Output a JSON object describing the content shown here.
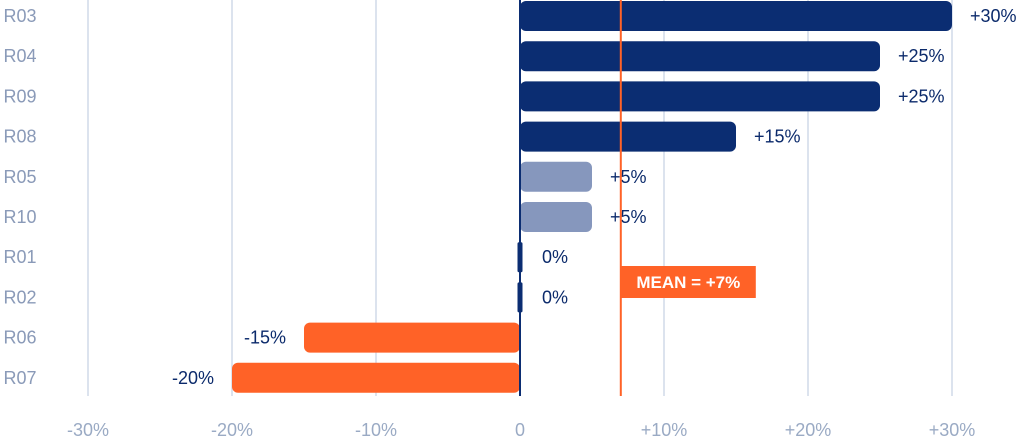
{
  "chart_data": {
    "type": "bar",
    "orientation": "horizontal",
    "categories": [
      "R03",
      "R04",
      "R09",
      "R08",
      "R05",
      "R10",
      "R01",
      "R02",
      "R06",
      "R07"
    ],
    "values": [
      30,
      25,
      25,
      15,
      5,
      5,
      0,
      0,
      -15,
      -20
    ],
    "value_labels": [
      "+30%",
      "+25%",
      "+25%",
      "+15%",
      "+5%",
      "+5%",
      "0%",
      "0%",
      "-15%",
      "-20%"
    ],
    "xlim": [
      -30,
      30
    ],
    "xticks": [
      -30,
      -20,
      -10,
      0,
      10,
      20,
      30
    ],
    "xtick_labels": [
      "-30%",
      "-20%",
      "-10%",
      "0",
      "+10%",
      "+20%",
      "+30%"
    ],
    "mean": {
      "value": 7,
      "label": "MEAN = +7%"
    },
    "grid": "vertical",
    "colors": {
      "strong_positive": "#0b2d72",
      "weak_positive": "#8697bd",
      "negative": "#ff6227",
      "mean": "#ff6227",
      "grid": "#dce3ee",
      "zero_line": "#0b2d72"
    }
  }
}
